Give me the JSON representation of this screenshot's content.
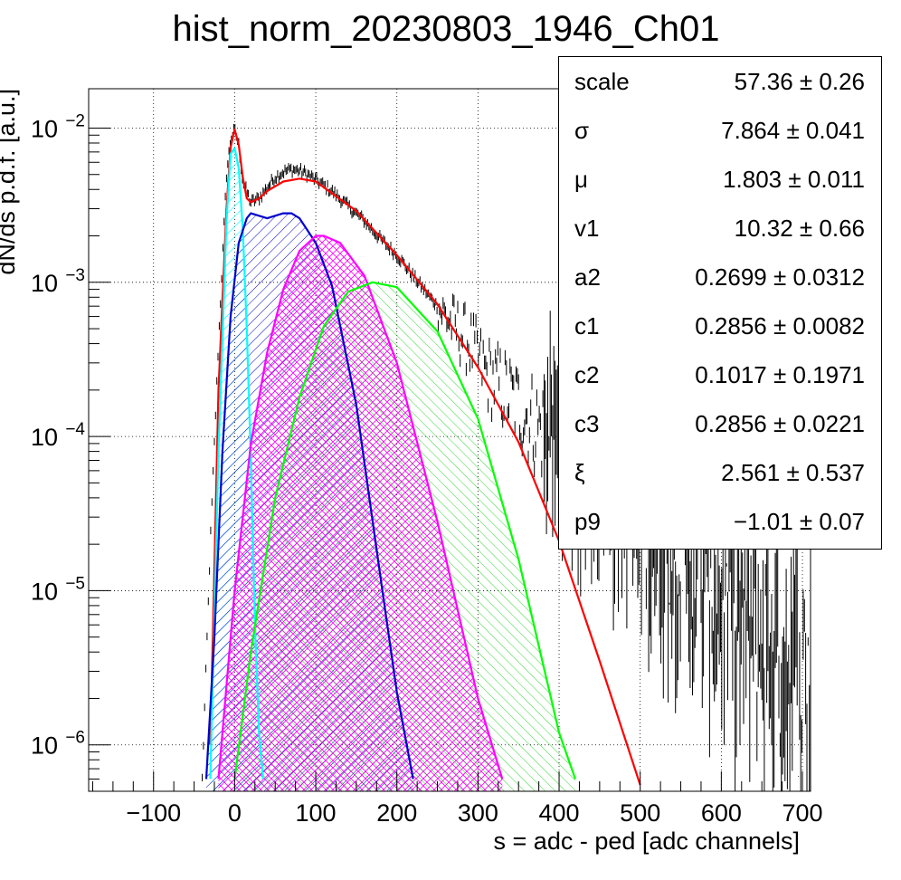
{
  "chart_data": {
    "type": "histogram_with_fit",
    "title": "hist_norm_20230803_1946_Ch01",
    "xlabel": "s = adc - ped [adc channels]",
    "ylabel": "dN/ds p.d.f. [a.u.]",
    "x_range": [
      -180,
      710
    ],
    "y_range": [
      5e-07,
      0.018
    ],
    "y_scale": "log",
    "grid": true,
    "x_ticks": [
      -100,
      0,
      100,
      200,
      300,
      400,
      500,
      600,
      700
    ],
    "x_tick_labels": [
      "−100",
      "0",
      "100",
      "200",
      "300",
      "400",
      "500",
      "600",
      "700"
    ],
    "y_ticks": [
      1e-06,
      1e-05,
      0.0001,
      0.001,
      0.01
    ],
    "y_tick_labels": [
      {
        "base": "10",
        "exp": "−6"
      },
      {
        "base": "10",
        "exp": "−5"
      },
      {
        "base": "10",
        "exp": "−4"
      },
      {
        "base": "10",
        "exp": "−3"
      },
      {
        "base": "10",
        "exp": "−2"
      }
    ],
    "series": [
      {
        "color": "#ff0000",
        "style": "line",
        "x": [
          -30,
          -20,
          -10,
          -5,
          0,
          5,
          10,
          15,
          20,
          30,
          40,
          60,
          80,
          100,
          150,
          200,
          250,
          300,
          350,
          400,
          450,
          500
        ],
        "y": [
          1e-06,
          0.0002,
          0.003,
          0.0075,
          0.0098,
          0.0078,
          0.0048,
          0.0035,
          0.0033,
          0.0035,
          0.0039,
          0.0045,
          0.0047,
          0.0045,
          0.0029,
          0.0015,
          0.00072,
          0.00028,
          9.2e-05,
          2.1e-05,
          3.5e-06,
          5.5e-07
        ]
      },
      {
        "color": "#00ffff",
        "style": "hatch",
        "x": [
          -30,
          -20,
          -10,
          -5,
          0,
          5,
          10,
          15,
          20,
          25,
          30,
          35
        ],
        "y": [
          6e-07,
          8e-05,
          0.0025,
          0.0068,
          0.0074,
          0.0055,
          0.0022,
          0.0005,
          7e-05,
          6e-06,
          1.2e-06,
          6e-07
        ]
      },
      {
        "color": "#0000cc",
        "style": "hatch",
        "x": [
          -35,
          -25,
          -15,
          -5,
          5,
          15,
          20,
          40,
          60,
          70,
          80,
          100,
          120,
          150,
          180,
          200,
          220
        ],
        "y": [
          6e-07,
          5e-06,
          8e-05,
          0.0006,
          0.0018,
          0.0026,
          0.0028,
          0.0026,
          0.0028,
          0.0028,
          0.0026,
          0.0018,
          0.00095,
          0.00016,
          1.2e-05,
          2.2e-06,
          6e-07
        ]
      },
      {
        "color": "#ff00ff",
        "style": "hatch",
        "x": [
          -20,
          0,
          20,
          40,
          60,
          80,
          100,
          110,
          130,
          160,
          200,
          250,
          300,
          330
        ],
        "y": [
          6e-07,
          1e-05,
          9e-05,
          0.00035,
          0.0009,
          0.0016,
          0.002,
          0.002,
          0.0018,
          0.0011,
          0.0003,
          2.8e-05,
          2e-06,
          6e-07
        ]
      },
      {
        "color": "#00ff00",
        "style": "hatch",
        "x": [
          0,
          20,
          50,
          80,
          110,
          140,
          170,
          200,
          250,
          300,
          350,
          400,
          420
        ],
        "y": [
          6e-07,
          4e-06,
          4e-05,
          0.00018,
          0.00052,
          0.00087,
          0.001,
          0.00093,
          0.00048,
          0.00013,
          1.6e-05,
          1.2e-06,
          6e-07
        ]
      }
    ],
    "data_histogram": {
      "color": "#000000",
      "x": [
        -40,
        -30,
        -20,
        -10,
        -5,
        0,
        5,
        10,
        20,
        30,
        40,
        50,
        60,
        70,
        80,
        90,
        100,
        120,
        140,
        160,
        180,
        200,
        230,
        260,
        290,
        310,
        340,
        370,
        400,
        430,
        460,
        490,
        520,
        550,
        580,
        610,
        640,
        670,
        700
      ],
      "y": [
        6e-07,
        2e-05,
        0.0004,
        0.005,
        0.0085,
        0.0097,
        0.0078,
        0.0045,
        0.0033,
        0.0035,
        0.0041,
        0.0048,
        0.0052,
        0.0054,
        0.0053,
        0.005,
        0.0046,
        0.0039,
        0.0031,
        0.0025,
        0.0019,
        0.0015,
        0.00094,
        0.0006,
        0.0004,
        0.00026,
        0.00018,
        0.00012,
        9e-05,
        6.6e-05,
        5e-05,
        3.5e-05,
        2.4e-05,
        1.6e-05,
        1.1e-05,
        7.5e-06,
        5e-06,
        3.5e-06,
        2.5e-06
      ]
    }
  },
  "stats_box": {
    "rows": [
      {
        "name": "scale",
        "value": "57.36 ± 0.26"
      },
      {
        "name": "σ",
        "value": "7.864 ± 0.041"
      },
      {
        "name": "μ",
        "value": "1.803 ± 0.011"
      },
      {
        "name": "v1",
        "value": "10.32 ± 0.66"
      },
      {
        "name": "a2",
        "value": "0.2699 ± 0.0312"
      },
      {
        "name": "c1",
        "value": "0.2856 ± 0.0082"
      },
      {
        "name": "c2",
        "value": "0.1017 ± 0.1971"
      },
      {
        "name": "c3",
        "value": "0.2856 ± 0.0221"
      },
      {
        "name": "ξ",
        "value": "2.561 ± 0.537"
      },
      {
        "name": "p9",
        "value": "−1.01 ± 0.07"
      }
    ]
  }
}
